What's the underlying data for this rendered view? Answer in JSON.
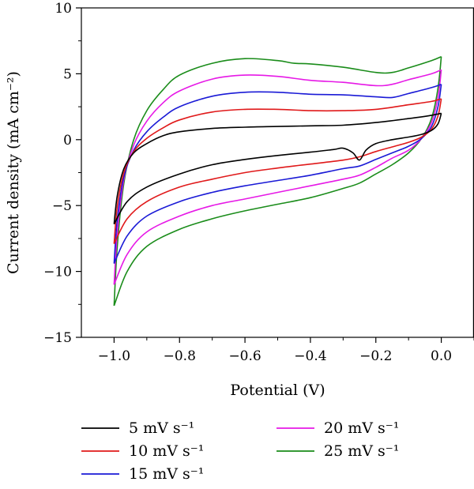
{
  "chart_data": {
    "type": "line",
    "xlabel": "Potential (V)",
    "ylabel": "Current density (mA cm⁻²)",
    "xlim": [
      -1.1,
      0.1
    ],
    "ylim": [
      -15,
      10
    ],
    "xticks": [
      -1.0,
      -0.8,
      -0.6,
      -0.4,
      -0.2,
      0.0
    ],
    "xtick_labels": [
      "−1.0",
      "−0.8",
      "−0.6",
      "−0.4",
      "−0.2",
      "0.0"
    ],
    "yticks": [
      -15,
      -10,
      -5,
      0,
      5,
      10
    ],
    "ytick_labels": [
      "−15",
      "−10",
      "−5",
      "0",
      "5",
      "10"
    ],
    "grid": false,
    "legend_position": "bottom",
    "series": [
      {
        "name": "5 mV s⁻¹",
        "color": "#000000",
        "upper": [
          [
            -1.0,
            -6.4
          ],
          [
            -0.99,
            -4.2
          ],
          [
            -0.97,
            -2.2
          ],
          [
            -0.94,
            -1.0
          ],
          [
            -0.9,
            -0.3
          ],
          [
            -0.85,
            0.3
          ],
          [
            -0.8,
            0.6
          ],
          [
            -0.7,
            0.85
          ],
          [
            -0.6,
            0.95
          ],
          [
            -0.5,
            1.0
          ],
          [
            -0.4,
            1.05
          ],
          [
            -0.3,
            1.1
          ],
          [
            -0.2,
            1.3
          ],
          [
            -0.1,
            1.6
          ],
          [
            -0.03,
            1.85
          ],
          [
            0.0,
            2.0
          ]
        ],
        "lower": [
          [
            0.0,
            2.0
          ],
          [
            -0.01,
            1.2
          ],
          [
            -0.03,
            0.7
          ],
          [
            -0.06,
            0.4
          ],
          [
            -0.1,
            0.2
          ],
          [
            -0.15,
            0.0
          ],
          [
            -0.2,
            -0.3
          ],
          [
            -0.23,
            -0.8
          ],
          [
            -0.25,
            -1.55
          ],
          [
            -0.27,
            -1.0
          ],
          [
            -0.3,
            -0.65
          ],
          [
            -0.33,
            -0.75
          ],
          [
            -0.4,
            -0.95
          ],
          [
            -0.5,
            -1.2
          ],
          [
            -0.6,
            -1.5
          ],
          [
            -0.7,
            -1.9
          ],
          [
            -0.8,
            -2.6
          ],
          [
            -0.9,
            -3.6
          ],
          [
            -0.96,
            -4.7
          ],
          [
            -1.0,
            -6.4
          ]
        ]
      },
      {
        "name": "10 mV s⁻¹",
        "color": "#e0191a",
        "upper": [
          [
            -1.0,
            -7.9
          ],
          [
            -0.99,
            -5.0
          ],
          [
            -0.97,
            -2.5
          ],
          [
            -0.94,
            -0.9
          ],
          [
            -0.9,
            0.1
          ],
          [
            -0.85,
            0.9
          ],
          [
            -0.8,
            1.5
          ],
          [
            -0.7,
            2.1
          ],
          [
            -0.6,
            2.3
          ],
          [
            -0.5,
            2.3
          ],
          [
            -0.4,
            2.2
          ],
          [
            -0.3,
            2.2
          ],
          [
            -0.2,
            2.3
          ],
          [
            -0.1,
            2.65
          ],
          [
            -0.03,
            2.9
          ],
          [
            0.0,
            3.1
          ]
        ],
        "lower": [
          [
            0.0,
            3.1
          ],
          [
            -0.01,
            1.8
          ],
          [
            -0.03,
            0.8
          ],
          [
            -0.06,
            0.2
          ],
          [
            -0.1,
            -0.2
          ],
          [
            -0.15,
            -0.55
          ],
          [
            -0.2,
            -0.9
          ],
          [
            -0.25,
            -1.3
          ],
          [
            -0.3,
            -1.55
          ],
          [
            -0.4,
            -1.85
          ],
          [
            -0.5,
            -2.15
          ],
          [
            -0.6,
            -2.5
          ],
          [
            -0.7,
            -3.0
          ],
          [
            -0.8,
            -3.6
          ],
          [
            -0.9,
            -4.7
          ],
          [
            -0.96,
            -6.0
          ],
          [
            -1.0,
            -7.9
          ]
        ]
      },
      {
        "name": "15 mV s⁻¹",
        "color": "#1a1ad6",
        "upper": [
          [
            -1.0,
            -9.4
          ],
          [
            -0.99,
            -6.0
          ],
          [
            -0.97,
            -2.8
          ],
          [
            -0.94,
            -0.8
          ],
          [
            -0.9,
            0.6
          ],
          [
            -0.85,
            1.7
          ],
          [
            -0.8,
            2.5
          ],
          [
            -0.7,
            3.3
          ],
          [
            -0.6,
            3.6
          ],
          [
            -0.5,
            3.6
          ],
          [
            -0.4,
            3.45
          ],
          [
            -0.3,
            3.4
          ],
          [
            -0.2,
            3.25
          ],
          [
            -0.15,
            3.2
          ],
          [
            -0.1,
            3.5
          ],
          [
            -0.03,
            3.95
          ],
          [
            0.0,
            4.2
          ]
        ],
        "lower": [
          [
            0.0,
            4.2
          ],
          [
            -0.01,
            2.5
          ],
          [
            -0.03,
            1.0
          ],
          [
            -0.06,
            0.1
          ],
          [
            -0.1,
            -0.5
          ],
          [
            -0.15,
            -1.0
          ],
          [
            -0.2,
            -1.5
          ],
          [
            -0.25,
            -2.0
          ],
          [
            -0.3,
            -2.2
          ],
          [
            -0.4,
            -2.7
          ],
          [
            -0.5,
            -3.1
          ],
          [
            -0.6,
            -3.5
          ],
          [
            -0.7,
            -4.0
          ],
          [
            -0.8,
            -4.7
          ],
          [
            -0.9,
            -5.8
          ],
          [
            -0.96,
            -7.3
          ],
          [
            -1.0,
            -9.4
          ]
        ]
      },
      {
        "name": "20 mV s⁻¹",
        "color": "#e619e6",
        "upper": [
          [
            -1.0,
            -11.0
          ],
          [
            -0.99,
            -7.0
          ],
          [
            -0.97,
            -3.0
          ],
          [
            -0.94,
            -0.4
          ],
          [
            -0.9,
            1.4
          ],
          [
            -0.85,
            2.8
          ],
          [
            -0.8,
            3.7
          ],
          [
            -0.7,
            4.6
          ],
          [
            -0.6,
            4.9
          ],
          [
            -0.5,
            4.8
          ],
          [
            -0.4,
            4.5
          ],
          [
            -0.3,
            4.35
          ],
          [
            -0.2,
            4.1
          ],
          [
            -0.15,
            4.2
          ],
          [
            -0.1,
            4.55
          ],
          [
            -0.03,
            5.0
          ],
          [
            0.0,
            5.3
          ]
        ],
        "lower": [
          [
            0.0,
            5.3
          ],
          [
            -0.01,
            3.2
          ],
          [
            -0.03,
            1.3
          ],
          [
            -0.06,
            0.1
          ],
          [
            -0.1,
            -0.8
          ],
          [
            -0.15,
            -1.4
          ],
          [
            -0.2,
            -2.1
          ],
          [
            -0.25,
            -2.7
          ],
          [
            -0.3,
            -3.0
          ],
          [
            -0.4,
            -3.5
          ],
          [
            -0.5,
            -4.0
          ],
          [
            -0.6,
            -4.5
          ],
          [
            -0.7,
            -5.0
          ],
          [
            -0.8,
            -5.8
          ],
          [
            -0.9,
            -7.0
          ],
          [
            -0.96,
            -8.7
          ],
          [
            -1.0,
            -11.0
          ]
        ]
      },
      {
        "name": "25 mV s⁻¹",
        "color": "#1a8c1a",
        "upper": [
          [
            -1.0,
            -12.6
          ],
          [
            -0.99,
            -8.0
          ],
          [
            -0.97,
            -3.3
          ],
          [
            -0.94,
            0.0
          ],
          [
            -0.9,
            2.2
          ],
          [
            -0.85,
            3.8
          ],
          [
            -0.8,
            4.9
          ],
          [
            -0.7,
            5.8
          ],
          [
            -0.6,
            6.15
          ],
          [
            -0.5,
            6.0
          ],
          [
            -0.45,
            5.8
          ],
          [
            -0.4,
            5.75
          ],
          [
            -0.3,
            5.5
          ],
          [
            -0.2,
            5.1
          ],
          [
            -0.15,
            5.1
          ],
          [
            -0.1,
            5.45
          ],
          [
            -0.03,
            6.0
          ],
          [
            0.0,
            6.3
          ]
        ],
        "lower": [
          [
            0.0,
            6.3
          ],
          [
            -0.01,
            3.9
          ],
          [
            -0.03,
            1.6
          ],
          [
            -0.06,
            0.1
          ],
          [
            -0.1,
            -1.0
          ],
          [
            -0.15,
            -1.9
          ],
          [
            -0.2,
            -2.6
          ],
          [
            -0.25,
            -3.3
          ],
          [
            -0.3,
            -3.7
          ],
          [
            -0.4,
            -4.4
          ],
          [
            -0.5,
            -4.9
          ],
          [
            -0.6,
            -5.4
          ],
          [
            -0.7,
            -6.0
          ],
          [
            -0.8,
            -6.8
          ],
          [
            -0.9,
            -8.1
          ],
          [
            -0.96,
            -10.0
          ],
          [
            -1.0,
            -12.6
          ]
        ]
      }
    ]
  }
}
